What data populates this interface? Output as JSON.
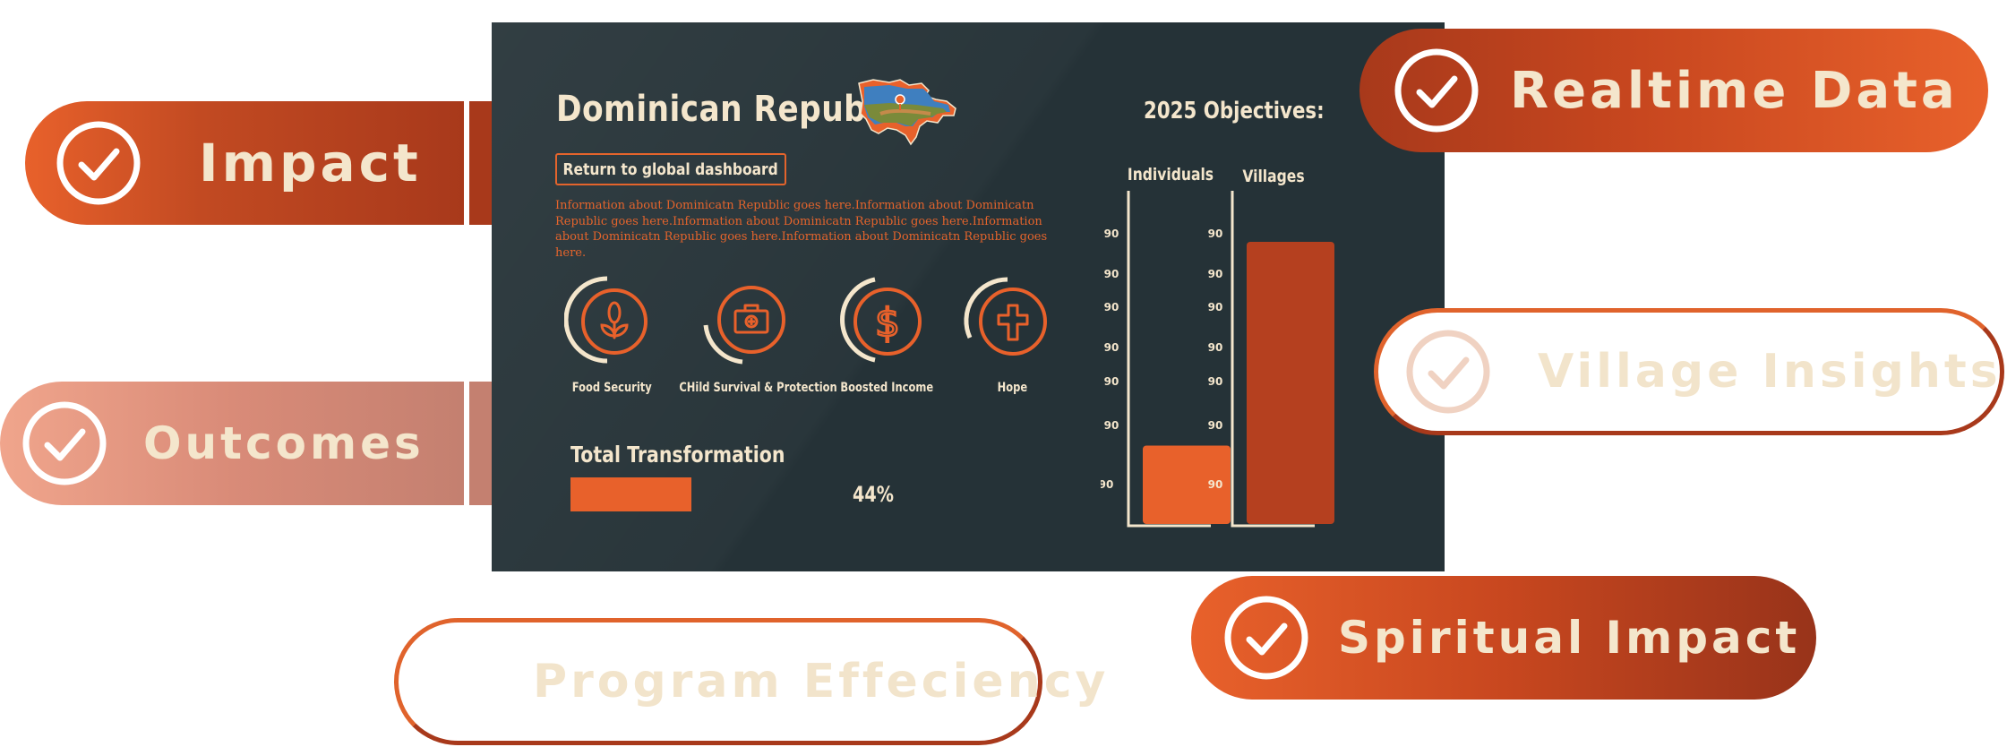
{
  "pills": {
    "impact": "Impact",
    "outcomes": "Outcomes",
    "realtime": "Realtime Data",
    "village": "Village Insights",
    "spiritual": "Spiritual Impact",
    "program": "Program Effeciency"
  },
  "country": {
    "name": "Dominican Republic",
    "return_label": "Return to global dashboard",
    "info": "Information about Dominicatn Republic goes here.Information about Dominicatn Republic goes here.Information about Dominicatn Republic goes here.Information about Dominicatn Republic goes here.Information about Dominicatn Republic goes here."
  },
  "categories": [
    {
      "label": "Food Security",
      "icon": "wheat-icon"
    },
    {
      "label": "CHild Survival & Protection",
      "icon": "medical-kit-icon"
    },
    {
      "label": "Boosted Income",
      "icon": "dollar-icon"
    },
    {
      "label": "Hope",
      "icon": "cross-icon"
    }
  ],
  "transformation": {
    "label": "Total Transformation",
    "value_text": "44%",
    "value": 0.44
  },
  "objectives": {
    "title": "2025 Objectives:"
  },
  "chart_data": {
    "type": "bar",
    "categories": [
      "Individuals",
      "Villages"
    ],
    "ytick_labels": [
      "90",
      "90",
      "90",
      "90",
      "90",
      "90",
      "90"
    ],
    "values": [
      0.25,
      0.9
    ],
    "colors": [
      "#e8612b",
      "#b5401f"
    ]
  },
  "colors": {
    "orange": "#e8612b",
    "rust": "#a8391b",
    "cream": "#f4e6cc",
    "panel": "#253237"
  }
}
